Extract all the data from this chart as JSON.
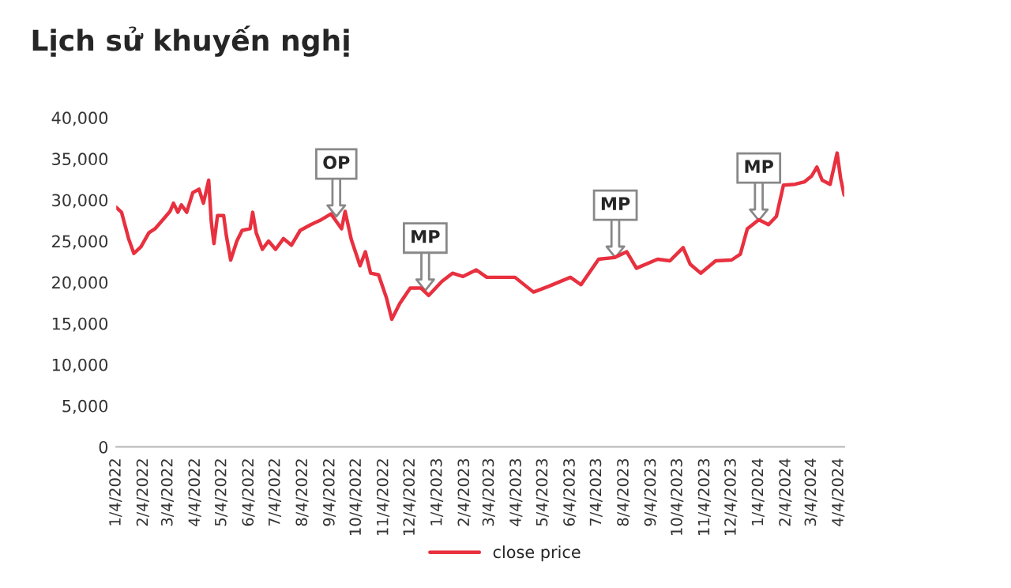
{
  "chart_data": {
    "type": "line",
    "title": "Lịch sử khuyến nghị",
    "x": [
      "2022-01-04",
      "2022-01-10",
      "2022-01-18",
      "2022-01-24",
      "2022-02-01",
      "2022-02-10",
      "2022-02-17",
      "2022-02-26",
      "2022-03-06",
      "2022-03-10",
      "2022-03-15",
      "2022-03-19",
      "2022-03-25",
      "2022-04-01",
      "2022-04-08",
      "2022-04-13",
      "2022-04-19",
      "2022-04-22",
      "2022-04-25",
      "2022-04-29",
      "2022-05-06",
      "2022-05-09",
      "2022-05-14",
      "2022-05-21",
      "2022-05-27",
      "2022-06-05",
      "2022-06-08",
      "2022-06-12",
      "2022-06-19",
      "2022-06-26",
      "2022-07-04",
      "2022-07-13",
      "2022-07-22",
      "2022-08-01",
      "2022-08-13",
      "2022-08-25",
      "2022-09-05",
      "2022-09-17",
      "2022-09-21",
      "2022-09-28",
      "2022-10-08",
      "2022-10-14",
      "2022-10-20",
      "2022-10-29",
      "2022-11-07",
      "2022-11-13",
      "2022-11-22",
      "2022-12-04",
      "2022-12-16",
      "2022-12-25",
      "2023-01-09",
      "2023-01-21",
      "2023-02-02",
      "2023-02-17",
      "2023-03-01",
      "2023-03-16",
      "2023-04-02",
      "2023-04-23",
      "2023-05-10",
      "2023-06-04",
      "2023-06-16",
      "2023-07-06",
      "2023-07-24",
      "2023-08-07",
      "2023-08-18",
      "2023-09-11",
      "2023-09-25",
      "2023-10-10",
      "2023-10-18",
      "2023-10-30",
      "2023-11-16",
      "2023-12-04",
      "2023-12-14",
      "2023-12-22",
      "2024-01-04",
      "2024-01-15",
      "2024-01-24",
      "2024-02-01",
      "2024-02-14",
      "2024-02-25",
      "2024-03-04",
      "2024-03-10",
      "2024-03-16",
      "2024-03-25",
      "2024-04-02",
      "2024-04-06",
      "2024-04-10"
    ],
    "series": [
      {
        "name": "close price",
        "color": "#e8303f",
        "values": [
          29100,
          28500,
          25300,
          23500,
          24300,
          26000,
          26500,
          27600,
          28600,
          29600,
          28500,
          29400,
          28500,
          30900,
          31300,
          29600,
          32400,
          27300,
          24700,
          28100,
          28100,
          25700,
          22700,
          25000,
          26300,
          26500,
          28500,
          26000,
          24000,
          25000,
          24000,
          25300,
          24500,
          26300,
          27000,
          27600,
          28300,
          26500,
          28600,
          25200,
          22000,
          23700,
          21100,
          20900,
          18100,
          15500,
          17400,
          19300,
          19300,
          18400,
          20100,
          21100,
          20700,
          21500,
          20600,
          20600,
          20600,
          18800,
          19500,
          20600,
          19700,
          22800,
          23000,
          23700,
          21700,
          22800,
          22600,
          24200,
          22200,
          21100,
          22600,
          22700,
          23400,
          26500,
          27600,
          27000,
          28000,
          31800,
          31900,
          32200,
          32900,
          34000,
          32400,
          31900,
          35700,
          32600,
          30600
        ]
      }
    ],
    "xlim": [
      "2022-01-04",
      "2024-04-10"
    ],
    "xticks": [
      {
        "value": "2022-01-04",
        "label": "1/4/2022"
      },
      {
        "value": "2022-02-04",
        "label": "2/4/2022"
      },
      {
        "value": "2022-03-04",
        "label": "3/4/2022"
      },
      {
        "value": "2022-04-04",
        "label": "4/4/2022"
      },
      {
        "value": "2022-05-04",
        "label": "5/4/2022"
      },
      {
        "value": "2022-06-04",
        "label": "6/4/2022"
      },
      {
        "value": "2022-07-04",
        "label": "7/4/2022"
      },
      {
        "value": "2022-08-04",
        "label": "8/4/2022"
      },
      {
        "value": "2022-09-04",
        "label": "9/4/2022"
      },
      {
        "value": "2022-10-04",
        "label": "10/4/2022"
      },
      {
        "value": "2022-11-04",
        "label": "11/4/2022"
      },
      {
        "value": "2022-12-04",
        "label": "12/4/2022"
      },
      {
        "value": "2023-01-04",
        "label": "1/4/2023"
      },
      {
        "value": "2023-02-04",
        "label": "2/4/2023"
      },
      {
        "value": "2023-03-04",
        "label": "3/4/2023"
      },
      {
        "value": "2023-04-04",
        "label": "4/4/2023"
      },
      {
        "value": "2023-05-04",
        "label": "5/4/2023"
      },
      {
        "value": "2023-06-04",
        "label": "6/4/2023"
      },
      {
        "value": "2023-07-04",
        "label": "7/4/2023"
      },
      {
        "value": "2023-08-04",
        "label": "8/4/2023"
      },
      {
        "value": "2023-09-04",
        "label": "9/4/2023"
      },
      {
        "value": "2023-10-04",
        "label": "10/4/2023"
      },
      {
        "value": "2023-11-04",
        "label": "11/4/2023"
      },
      {
        "value": "2023-12-04",
        "label": "12/4/2023"
      },
      {
        "value": "2024-01-04",
        "label": "1/4/2024"
      },
      {
        "value": "2024-02-04",
        "label": "2/4/2024"
      },
      {
        "value": "2024-03-04",
        "label": "3/4/2024"
      },
      {
        "value": "2024-04-04",
        "label": "4/4/2024"
      }
    ],
    "ylim": [
      0,
      40000
    ],
    "yticks": [
      {
        "value": 0,
        "label": "0"
      },
      {
        "value": 5000,
        "label": "5,000"
      },
      {
        "value": 10000,
        "label": "10,000"
      },
      {
        "value": 15000,
        "label": "15,000"
      },
      {
        "value": 20000,
        "label": "20,000"
      },
      {
        "value": 25000,
        "label": "25,000"
      },
      {
        "value": 30000,
        "label": "30,000"
      },
      {
        "value": 35000,
        "label": "35,000"
      },
      {
        "value": 40000,
        "label": "40,000"
      }
    ],
    "annotations": [
      {
        "text": "OP",
        "x": "2022-09-11",
        "y": 28000
      },
      {
        "text": "MP",
        "x": "2022-12-21",
        "y": 19000
      },
      {
        "text": "MP",
        "x": "2023-07-25",
        "y": 23000
      },
      {
        "text": "MP",
        "x": "2024-01-04",
        "y": 27500
      }
    ],
    "grid": false,
    "legend": "bottom",
    "marker": "none",
    "line_style": "solid"
  }
}
